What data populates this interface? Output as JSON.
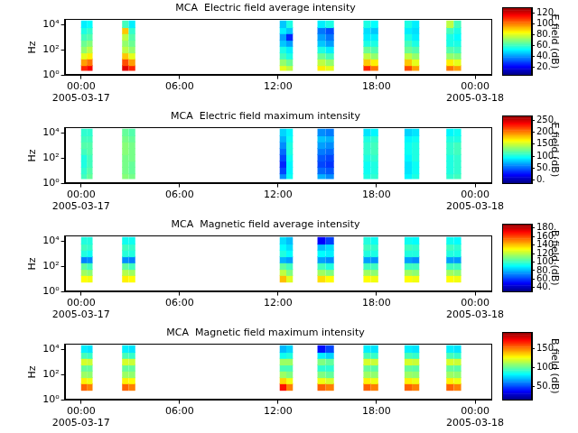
{
  "chart_data": [
    {
      "type": "heatmap",
      "title": "MCA  Electric field average intensity",
      "y_label": "Hz",
      "log": "y",
      "grid": false,
      "xlim": [
        -1,
        25
      ],
      "xticks": [
        {
          "value": 0,
          "label": "00:00\n2005-03-17"
        },
        {
          "value": 6,
          "label": "06:00"
        },
        {
          "value": 12,
          "label": "12:00"
        },
        {
          "value": 18,
          "label": "18:00"
        },
        {
          "value": 24,
          "label": "00:00\n2005-03-18"
        }
      ],
      "ylim": [
        1,
        28000
      ],
      "yticks": [
        {
          "value": 1,
          "label": "10⁰"
        },
        {
          "value": 100,
          "label": "10²"
        },
        {
          "value": 10000,
          "label": "10⁴"
        }
      ],
      "x_bins": [
        [
          0,
          0.35
        ],
        [
          0.35,
          0.7
        ],
        [
          2.5,
          2.9
        ],
        [
          2.9,
          3.3
        ],
        [
          12.1,
          12.5
        ],
        [
          12.5,
          12.9
        ],
        [
          14.4,
          14.9
        ],
        [
          14.9,
          15.4
        ],
        [
          17.2,
          17.65
        ],
        [
          17.65,
          18.1
        ],
        [
          19.7,
          20.15
        ],
        [
          20.15,
          20.6
        ],
        [
          22.25,
          22.7
        ],
        [
          22.7,
          23.15
        ]
      ],
      "y_bins": [
        2.5,
        6,
        20,
        60,
        200,
        600,
        2000,
        6000,
        20000
      ],
      "z": [
        [
          110,
          95,
          80,
          70,
          65,
          60,
          55,
          50
        ],
        [
          115,
          100,
          85,
          75,
          68,
          62,
          58,
          52
        ],
        [
          118,
          105,
          90,
          75,
          70,
          75,
          90,
          60
        ],
        [
          110,
          95,
          80,
          70,
          65,
          62,
          58,
          50
        ],
        [
          80,
          70,
          60,
          55,
          45,
          40,
          50,
          45
        ],
        [
          75,
          65,
          55,
          50,
          40,
          25,
          45,
          55
        ],
        [
          85,
          75,
          65,
          55,
          45,
          40,
          35,
          50
        ],
        [
          80,
          70,
          60,
          50,
          40,
          35,
          30,
          55
        ],
        [
          110,
          90,
          75,
          65,
          55,
          50,
          48,
          55
        ],
        [
          100,
          85,
          70,
          62,
          55,
          50,
          45,
          52
        ],
        [
          105,
          90,
          75,
          65,
          60,
          55,
          50,
          55
        ],
        [
          95,
          80,
          70,
          62,
          55,
          50,
          48,
          50
        ],
        [
          100,
          85,
          70,
          62,
          55,
          55,
          60,
          75
        ],
        [
          95,
          80,
          68,
          60,
          55,
          52,
          55,
          60
        ]
      ],
      "colorbar": {
        "label": "E field (dB)",
        "lim": [
          5,
          130
        ],
        "ticks": [
          {
            "value": 20,
            "label": "20."
          },
          {
            "value": 40,
            "label": "40."
          },
          {
            "value": 60,
            "label": "60."
          },
          {
            "value": 80,
            "label": "80."
          },
          {
            "value": 100,
            "label": "100."
          },
          {
            "value": 120,
            "label": "120."
          }
        ]
      }
    },
    {
      "type": "heatmap",
      "title": "MCA  Electric field maximum intensity",
      "y_label": "Hz",
      "log": "y",
      "grid": false,
      "xlim": [
        -1,
        25
      ],
      "xticks": [
        {
          "value": 0,
          "label": "00:00\n2005-03-17"
        },
        {
          "value": 6,
          "label": "06:00"
        },
        {
          "value": 12,
          "label": "12:00"
        },
        {
          "value": 18,
          "label": "18:00"
        },
        {
          "value": 24,
          "label": "00:00\n2005-03-18"
        }
      ],
      "ylim": [
        1,
        28000
      ],
      "yticks": [
        {
          "value": 1,
          "label": "10⁰"
        },
        {
          "value": 100,
          "label": "10²"
        },
        {
          "value": 10000,
          "label": "10⁴"
        }
      ],
      "x_bins": [
        [
          0,
          0.35
        ],
        [
          0.35,
          0.7
        ],
        [
          2.5,
          2.9
        ],
        [
          2.9,
          3.3
        ],
        [
          12.1,
          12.5
        ],
        [
          12.5,
          12.9
        ],
        [
          14.4,
          14.9
        ],
        [
          14.9,
          15.4
        ],
        [
          17.2,
          17.65
        ],
        [
          17.65,
          18.1
        ],
        [
          19.7,
          20.15
        ],
        [
          20.15,
          20.6
        ],
        [
          22.25,
          22.7
        ],
        [
          22.7,
          23.15
        ]
      ],
      "y_bins": [
        2.5,
        6,
        20,
        60,
        200,
        600,
        2000,
        6000,
        20000
      ],
      "z": [
        [
          110,
          105,
          100,
          100,
          110,
          115,
          110,
          105
        ],
        [
          120,
          115,
          110,
          110,
          115,
          115,
          110,
          105
        ],
        [
          130,
          125,
          125,
          125,
          130,
          130,
          125,
          120
        ],
        [
          125,
          120,
          120,
          125,
          125,
          125,
          120,
          115
        ],
        [
          60,
          40,
          30,
          40,
          50,
          60,
          70,
          80
        ],
        [
          95,
          90,
          90,
          95,
          100,
          100,
          95,
          90
        ],
        [
          70,
          50,
          40,
          45,
          55,
          65,
          75,
          60
        ],
        [
          60,
          45,
          35,
          40,
          50,
          60,
          70,
          55
        ],
        [
          100,
          95,
          95,
          100,
          105,
          105,
          100,
          85
        ],
        [
          105,
          100,
          100,
          105,
          110,
          110,
          105,
          90
        ],
        [
          90,
          85,
          85,
          90,
          95,
          95,
          90,
          80
        ],
        [
          100,
          95,
          95,
          100,
          100,
          100,
          95,
          85
        ],
        [
          105,
          100,
          100,
          100,
          105,
          105,
          100,
          90
        ],
        [
          110,
          105,
          105,
          105,
          110,
          110,
          100,
          95
        ]
      ],
      "colorbar": {
        "label": "E field (dB)",
        "lim": [
          -15,
          270
        ],
        "ticks": [
          {
            "value": 0,
            "label": "0."
          },
          {
            "value": 50,
            "label": "50."
          },
          {
            "value": 100,
            "label": "100."
          },
          {
            "value": 150,
            "label": "150."
          },
          {
            "value": 200,
            "label": "200."
          },
          {
            "value": 250,
            "label": "250."
          }
        ]
      }
    },
    {
      "type": "heatmap",
      "title": "MCA  Magnetic field average intensity",
      "y_label": "Hz",
      "log": "y",
      "grid": false,
      "xlim": [
        -1,
        25
      ],
      "xticks": [
        {
          "value": 0,
          "label": "00:00\n2005-03-17"
        },
        {
          "value": 6,
          "label": "06:00"
        },
        {
          "value": 12,
          "label": "12:00"
        },
        {
          "value": 18,
          "label": "18:00"
        },
        {
          "value": 24,
          "label": "00:00\n2005-03-18"
        }
      ],
      "ylim": [
        1,
        28000
      ],
      "yticks": [
        {
          "value": 1,
          "label": "10⁰"
        },
        {
          "value": 100,
          "label": "10²"
        },
        {
          "value": 10000,
          "label": "10⁴"
        }
      ],
      "x_bins": [
        [
          0,
          0.35
        ],
        [
          0.35,
          0.7
        ],
        [
          2.5,
          2.9
        ],
        [
          2.9,
          3.3
        ],
        [
          12.1,
          12.5
        ],
        [
          12.5,
          12.9
        ],
        [
          14.4,
          14.9
        ],
        [
          14.9,
          15.4
        ],
        [
          17.2,
          17.65
        ],
        [
          17.65,
          18.1
        ],
        [
          19.7,
          20.15
        ],
        [
          20.15,
          20.6
        ],
        [
          22.25,
          22.7
        ],
        [
          22.7,
          23.15
        ]
      ],
      "y_bins": [
        2.5,
        6,
        20,
        60,
        200,
        600,
        2000,
        6000,
        20000
      ],
      "z": [
        [
          null,
          130,
          115,
          105,
          70,
          95,
          100,
          95
        ],
        [
          null,
          128,
          112,
          100,
          72,
          92,
          98,
          95
        ],
        [
          null,
          132,
          118,
          105,
          72,
          96,
          100,
          92
        ],
        [
          null,
          130,
          115,
          100,
          70,
          95,
          98,
          92
        ],
        [
          null,
          140,
          120,
          105,
          78,
          95,
          90,
          85
        ],
        [
          null,
          125,
          110,
          100,
          75,
          90,
          85,
          80
        ],
        [
          null,
          135,
          115,
          100,
          75,
          90,
          80,
          50
        ],
        [
          null,
          130,
          110,
          95,
          72,
          88,
          85,
          60
        ],
        [
          null,
          130,
          115,
          100,
          75,
          95,
          100,
          95
        ],
        [
          null,
          128,
          112,
          100,
          73,
          94,
          98,
          92
        ],
        [
          null,
          130,
          115,
          100,
          75,
          95,
          100,
          92
        ],
        [
          null,
          128,
          112,
          100,
          72,
          95,
          98,
          90
        ],
        [
          null,
          130,
          115,
          100,
          75,
          95,
          100,
          92
        ],
        [
          null,
          128,
          112,
          100,
          74,
          94,
          97,
          90
        ]
      ],
      "colorbar": {
        "label": "B field (dB)",
        "lim": [
          30,
          190
        ],
        "ticks": [
          {
            "value": 40,
            "label": "40."
          },
          {
            "value": 60,
            "label": "60."
          },
          {
            "value": 80,
            "label": "80."
          },
          {
            "value": 100,
            "label": "100."
          },
          {
            "value": 120,
            "label": "120."
          },
          {
            "value": 140,
            "label": "140."
          },
          {
            "value": 160,
            "label": "160."
          },
          {
            "value": 180,
            "label": "180."
          }
        ]
      }
    },
    {
      "type": "heatmap",
      "title": "MCA  Magnetic field maximum intensity",
      "y_label": "Hz",
      "log": "y",
      "grid": false,
      "xlim": [
        -1,
        25
      ],
      "xticks": [
        {
          "value": 0,
          "label": "00:00\n2005-03-17"
        },
        {
          "value": 6,
          "label": "06:00"
        },
        {
          "value": 12,
          "label": "12:00"
        },
        {
          "value": 18,
          "label": "18:00"
        },
        {
          "value": 24,
          "label": "00:00\n2005-03-18"
        }
      ],
      "ylim": [
        1,
        28000
      ],
      "yticks": [
        {
          "value": 1,
          "label": "10⁰"
        },
        {
          "value": 100,
          "label": "10²"
        },
        {
          "value": 10000,
          "label": "10⁴"
        }
      ],
      "x_bins": [
        [
          0,
          0.35
        ],
        [
          0.35,
          0.7
        ],
        [
          2.5,
          2.9
        ],
        [
          2.9,
          3.3
        ],
        [
          12.1,
          12.5
        ],
        [
          12.5,
          12.9
        ],
        [
          14.4,
          14.9
        ],
        [
          14.9,
          15.4
        ],
        [
          17.2,
          17.65
        ],
        [
          17.65,
          18.1
        ],
        [
          19.7,
          20.15
        ],
        [
          20.15,
          20.6
        ],
        [
          22.25,
          22.7
        ],
        [
          22.7,
          23.15
        ]
      ],
      "y_bins": [
        2.5,
        6,
        20,
        60,
        200,
        600,
        2000,
        6000,
        20000
      ],
      "z": [
        [
          null,
          155,
          130,
          110,
          100,
          120,
          95,
          80
        ],
        [
          null,
          150,
          125,
          108,
          100,
          118,
          92,
          78
        ],
        [
          null,
          155,
          130,
          110,
          100,
          120,
          95,
          80
        ],
        [
          null,
          150,
          128,
          108,
          100,
          118,
          92,
          78
        ],
        [
          null,
          170,
          135,
          110,
          95,
          110,
          85,
          70
        ],
        [
          null,
          150,
          125,
          105,
          95,
          110,
          88,
          75
        ],
        [
          null,
          155,
          125,
          105,
          90,
          105,
          80,
          40
        ],
        [
          null,
          150,
          120,
          100,
          90,
          100,
          75,
          50
        ],
        [
          null,
          155,
          130,
          110,
          100,
          120,
          95,
          80
        ],
        [
          null,
          150,
          125,
          108,
          98,
          118,
          92,
          78
        ],
        [
          null,
          155,
          130,
          110,
          100,
          120,
          95,
          80
        ],
        [
          null,
          150,
          125,
          108,
          98,
          118,
          92,
          78
        ],
        [
          null,
          155,
          130,
          110,
          100,
          120,
          95,
          80
        ],
        [
          null,
          150,
          125,
          108,
          98,
          118,
          92,
          78
        ]
      ],
      "colorbar": {
        "label": "B field (dB)",
        "lim": [
          15,
          195
        ],
        "ticks": [
          {
            "value": 50,
            "label": "50."
          },
          {
            "value": 100,
            "label": "100."
          },
          {
            "value": 150,
            "label": "150."
          }
        ]
      }
    }
  ]
}
